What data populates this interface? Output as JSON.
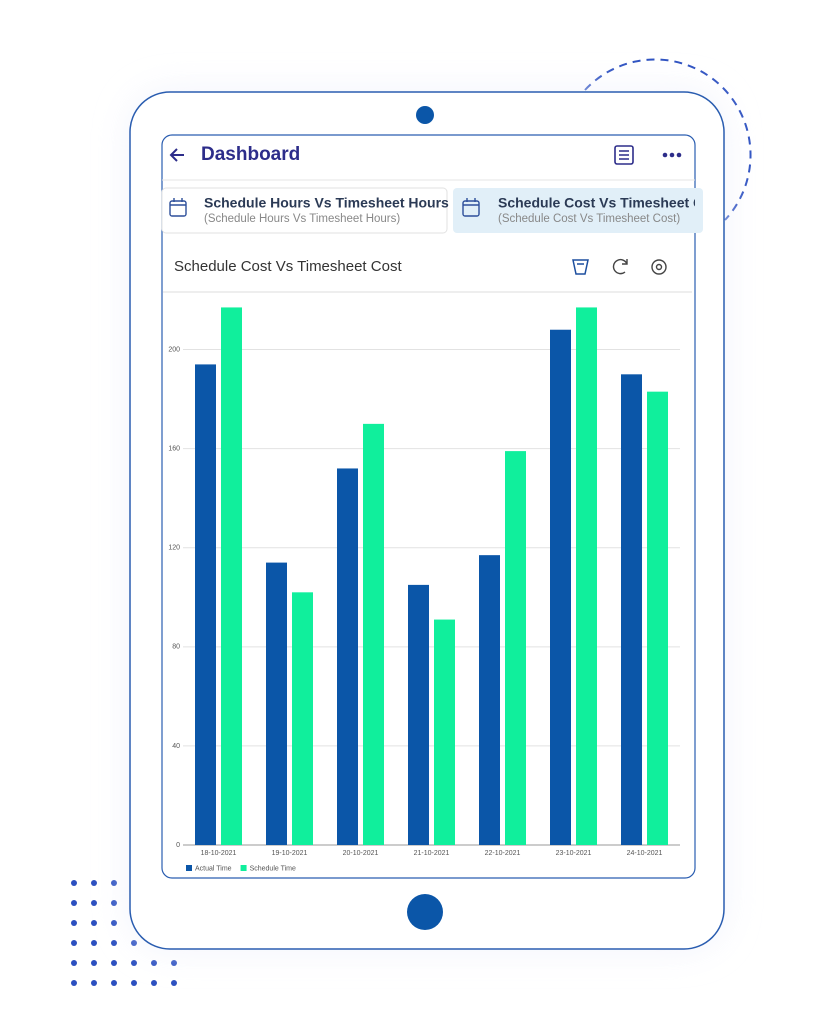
{
  "header": {
    "title": "Dashboard"
  },
  "tabs": [
    {
      "title": "Schedule Hours Vs Timesheet Hours",
      "subtitle": "(Schedule Hours Vs Timesheet Hours)"
    },
    {
      "title": "Schedule Cost Vs Timesheet Cost",
      "subtitle": "(Schedule Cost Vs Timesheet Cost)"
    }
  ],
  "chart_data": {
    "type": "bar",
    "title": "Schedule Cost Vs Timesheet Cost",
    "categories": [
      "18-10-2021",
      "19-10-2021",
      "20-10-2021",
      "21-10-2021",
      "22-10-2021",
      "23-10-2021",
      "24-10-2021"
    ],
    "series": [
      {
        "name": "Actual Time",
        "color": "#0b56a8",
        "values": [
          194,
          114,
          152,
          105,
          117,
          208,
          190
        ]
      },
      {
        "name": "Schedule Time",
        "color": "#10ef9c",
        "values": [
          217,
          102,
          170,
          91,
          159,
          217,
          183
        ]
      }
    ],
    "ylim": [
      0,
      220
    ],
    "yticks": [
      0,
      40,
      80,
      120,
      160,
      200
    ],
    "grid": true,
    "legend": "bottom-left"
  }
}
